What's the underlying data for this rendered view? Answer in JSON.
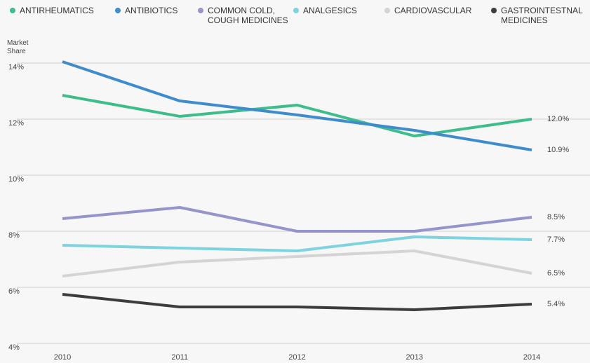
{
  "chart_data": {
    "type": "line",
    "y_label": "Market Share",
    "categories": [
      "2010",
      "2011",
      "2012",
      "2013",
      "2014"
    ],
    "ylim": [
      4,
      15
    ],
    "yticks": [
      {
        "value": 4,
        "label": "4%"
      },
      {
        "value": 6,
        "label": "6%"
      },
      {
        "value": 8,
        "label": "8%"
      },
      {
        "value": 10,
        "label": "10%"
      },
      {
        "value": 12,
        "label": "12%"
      },
      {
        "value": 14,
        "label": "14%"
      }
    ],
    "grid": true,
    "legend": "top",
    "series": [
      {
        "name": "ANTIRHEUMATICS",
        "color": "#3dbd8b",
        "values": [
          12.85,
          12.1,
          12.5,
          11.4,
          12.0
        ],
        "value_labels": [
          null,
          null,
          null,
          null,
          "12.0%"
        ]
      },
      {
        "name": "ANTIBIOTICS",
        "color": "#3e8ccc",
        "values": [
          14.05,
          12.65,
          12.15,
          11.6,
          10.9
        ],
        "value_labels": [
          null,
          null,
          null,
          null,
          "10.9%"
        ]
      },
      {
        "name": "COMMON COLD, COUGH MEDICINES",
        "color": "#9595cc",
        "values": [
          8.45,
          8.85,
          8.0,
          8.0,
          8.5
        ],
        "value_labels": [
          null,
          null,
          null,
          null,
          "8.5%"
        ]
      },
      {
        "name": "ANALGESICS",
        "color": "#7fd2e0",
        "values": [
          7.5,
          7.4,
          7.3,
          7.8,
          7.7
        ],
        "value_labels": [
          null,
          null,
          null,
          null,
          "7.7%"
        ]
      },
      {
        "name": "CARDIOVASCULAR",
        "color": "#d4d4d4",
        "values": [
          6.4,
          6.9,
          7.1,
          7.3,
          6.5
        ],
        "value_labels": [
          null,
          null,
          null,
          null,
          "6.5%"
        ]
      },
      {
        "name": "GASTROINTESTNAL MEDICINES",
        "color": "#3c3c3c",
        "values": [
          5.75,
          5.3,
          5.3,
          5.2,
          5.4
        ],
        "value_labels": [
          null,
          null,
          null,
          null,
          "5.4%"
        ]
      }
    ]
  }
}
